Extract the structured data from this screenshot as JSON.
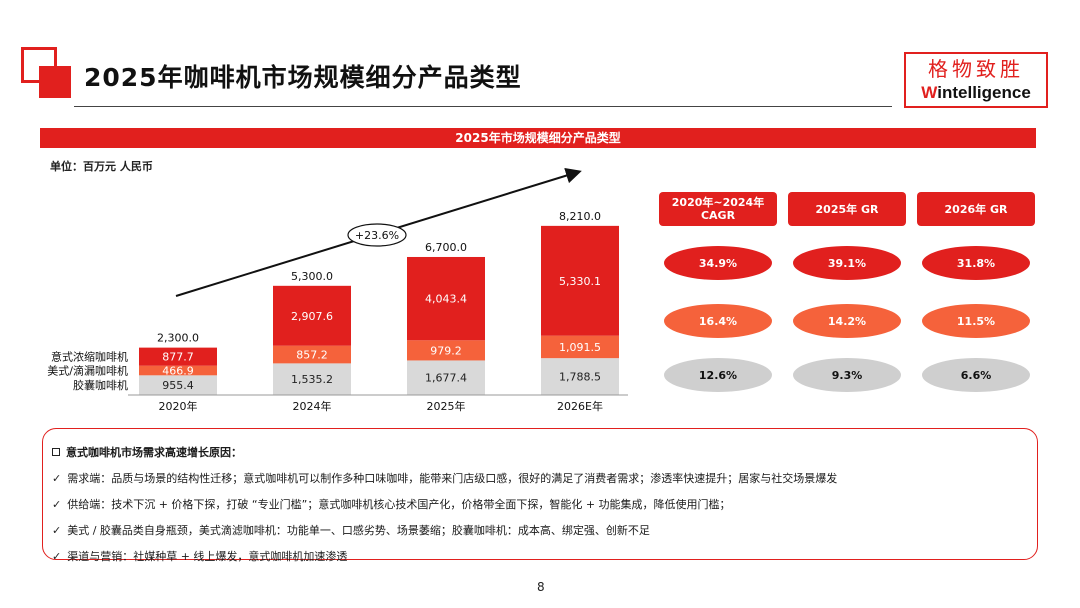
{
  "header": {
    "title": "2025年咖啡机市场规模细分产品类型",
    "logo_cn": "格物致胜",
    "logo_en_prefix": "W",
    "logo_en_rest": "intelligence"
  },
  "banner": "2025年市场规模细分产品类型",
  "unit": "单位：百万元 人民币",
  "chart_data": {
    "type": "bar",
    "stacked": true,
    "categories": [
      "2020年",
      "2024年",
      "2025年",
      "2026E年"
    ],
    "series": [
      {
        "name": "胶囊咖啡机",
        "values": [
          955.4,
          1535.2,
          1677.4,
          1788.5
        ],
        "color": "#d9d9d9"
      },
      {
        "name": "美式/滴漏咖啡机",
        "values": [
          466.9,
          857.2,
          979.2,
          1091.5
        ],
        "color": "#f5623b"
      },
      {
        "name": "意式浓缩咖啡机",
        "values": [
          877.7,
          2907.6,
          4043.4,
          5330.1
        ],
        "color": "#e1201e"
      }
    ],
    "totals": [
      2300.0,
      5300.0,
      6700.0,
      8210.0
    ],
    "value_labels": {
      "胶囊咖啡机": [
        "955.4",
        "1,535.2",
        "1,677.4",
        "1,788.5"
      ],
      "美式/滴漏咖啡机": [
        "466.9",
        "857.2",
        "979.2",
        "1,091.5"
      ],
      "意式浓缩咖啡机": [
        "877.7",
        "2,907.6",
        "4,043.4",
        "5,330.1"
      ]
    },
    "total_labels": [
      "2,300.0",
      "5,300.0",
      "6,700.0",
      "8,210.0"
    ],
    "growth_annotation": "+23.6%",
    "legend_position": "left"
  },
  "growth_table": {
    "headers": [
      "2020年~2024年 CAGR",
      "2025年 GR",
      "2026年 GR"
    ],
    "rows": [
      {
        "series": "意式浓缩咖啡机",
        "values": [
          "34.9%",
          "39.1%",
          "31.8%"
        ],
        "color": "#e1201e"
      },
      {
        "series": "美式/滴漏咖啡机",
        "values": [
          "16.4%",
          "14.2%",
          "11.5%"
        ],
        "color": "#f5623b"
      },
      {
        "series": "胶囊咖啡机",
        "values": [
          "12.6%",
          "9.3%",
          "6.6%"
        ],
        "color": "#cfcfcf"
      }
    ]
  },
  "reasons": {
    "heading": "意式咖啡机市场需求高速增长原因：",
    "items": [
      "需求端：品质与场景的结构性迁移；意式咖啡机可以制作多种口味咖啡，能带来门店级口感，很好的满足了消费者需求；渗透率快速提升；居家与社交场景爆发",
      "供给端：技术下沉 + 价格下探，打破 “专业门槛”；意式咖啡机核心技术国产化，价格带全面下探，智能化 + 功能集成，降低使用门槛；",
      "美式 / 胶囊品类自身瓶颈，美式滴滤咖啡机：功能单一、口感劣势、场景萎缩；胶囊咖啡机：成本高、绑定强、创新不足",
      "渠道与营销：社媒种草 + 线上爆发，意式咖啡机加速渗透"
    ]
  },
  "page_number": "8"
}
